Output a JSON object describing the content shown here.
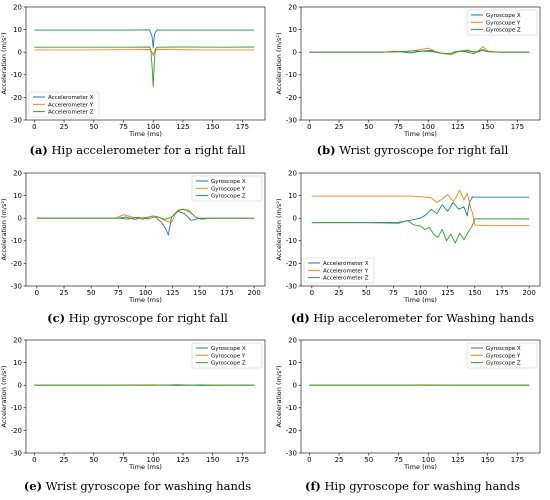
{
  "chart_data": [
    {
      "panel": "a",
      "type": "line",
      "caption_letter": "(a)",
      "caption": "Hip accelerometer for a right fall",
      "xlabel": "Time (ms)",
      "ylabel": "Acceleration (m/s²)",
      "xlim": [
        -7,
        194
      ],
      "ylim": [
        -30,
        20
      ],
      "xticks": [
        0,
        25,
        50,
        75,
        100,
        125,
        150,
        175
      ],
      "yticks": [
        20,
        10,
        0,
        -10,
        -20,
        -30
      ],
      "legend": "lower-left",
      "series": [
        {
          "name": "Accelerometer X",
          "color": "#1f77b4",
          "x": [
            0,
            20,
            40,
            60,
            80,
            97,
            99,
            100,
            101,
            103,
            120,
            140,
            160,
            185
          ],
          "y": [
            9.8,
            9.8,
            9.8,
            9.8,
            9.8,
            9.9,
            7.0,
            2.0,
            8.0,
            9.8,
            9.8,
            9.8,
            9.8,
            9.8
          ]
        },
        {
          "name": "Accelerometer Y",
          "color": "#ff7f0e",
          "x": [
            0,
            40,
            80,
            97,
            99,
            100,
            101,
            103,
            140,
            185
          ],
          "y": [
            1.0,
            1.0,
            1.1,
            1.2,
            0.0,
            -1.5,
            0.5,
            1.2,
            1.0,
            1.0
          ]
        },
        {
          "name": "Accelerometer Z",
          "color": "#2ca02c",
          "x": [
            0,
            40,
            80,
            97,
            98,
            99,
            100,
            101,
            102,
            103,
            120,
            160,
            185
          ],
          "y": [
            2.2,
            2.2,
            2.2,
            2.3,
            1.0,
            -6.0,
            -15.5,
            -3.0,
            1.5,
            2.2,
            2.3,
            2.2,
            2.3
          ]
        }
      ]
    },
    {
      "panel": "b",
      "type": "line",
      "caption_letter": "(b)",
      "caption": "Wrist gyroscope for right fall",
      "xlabel": "Time (ms)",
      "ylabel": "Acceleration (m/s²)",
      "xlim": [
        -7,
        194
      ],
      "ylim": [
        -30,
        20
      ],
      "xticks": [
        0,
        25,
        50,
        75,
        100,
        125,
        150,
        175
      ],
      "yticks": [
        20,
        10,
        0,
        -10,
        -20,
        -30
      ],
      "legend": "top-right",
      "series": [
        {
          "name": "Gyroscope X",
          "color": "#1f77b4",
          "x": [
            0,
            40,
            60,
            75,
            85,
            95,
            102,
            110,
            118,
            122,
            130,
            138,
            145,
            150,
            160,
            185
          ],
          "y": [
            0,
            0,
            0,
            0.3,
            -0.3,
            0.5,
            0.8,
            -0.4,
            -1.0,
            0.2,
            0.4,
            -0.6,
            0.8,
            0.3,
            0,
            0
          ]
        },
        {
          "name": "Gyroscope Y",
          "color": "#ff7f0e",
          "x": [
            0,
            40,
            62,
            72,
            82,
            92,
            100,
            106,
            112,
            120,
            126,
            134,
            140,
            146,
            150,
            160,
            185
          ],
          "y": [
            0,
            0,
            0,
            0.5,
            0.3,
            1.0,
            1.8,
            0.4,
            -0.5,
            -1.0,
            0.5,
            1.0,
            -0.4,
            2.5,
            0.5,
            0,
            0
          ]
        },
        {
          "name": "Gyroscope Z",
          "color": "#2ca02c",
          "x": [
            0,
            40,
            60,
            75,
            88,
            96,
            104,
            110,
            118,
            124,
            132,
            140,
            146,
            150,
            160,
            185
          ],
          "y": [
            0,
            0,
            0,
            0.2,
            0.6,
            0.4,
            0.2,
            -0.4,
            -0.6,
            0.2,
            0.6,
            0.2,
            1.2,
            0.2,
            0,
            0
          ]
        }
      ]
    },
    {
      "panel": "c",
      "type": "line",
      "caption_letter": "(c)",
      "caption": "Hip gyroscope for right fall",
      "xlabel": "Time (ms)",
      "ylabel": "Acceleration (m/s²)",
      "xlim": [
        -10,
        210
      ],
      "ylim": [
        -30,
        20
      ],
      "xticks": [
        0,
        25,
        50,
        75,
        100,
        125,
        150,
        175,
        200
      ],
      "yticks": [
        20,
        10,
        0,
        -10,
        -20,
        -30
      ],
      "legend": "top-right",
      "series": [
        {
          "name": "Gyroscope X",
          "color": "#1f77b4",
          "x": [
            0,
            50,
            75,
            82,
            90,
            100,
            108,
            115,
            119,
            121,
            124,
            130,
            136,
            142,
            150,
            160,
            200
          ],
          "y": [
            0,
            0,
            0,
            0.5,
            -0.5,
            0.3,
            1.0,
            -2.0,
            -5.0,
            -7.5,
            0.5,
            3.0,
            2.0,
            -1.0,
            0,
            0,
            0
          ]
        },
        {
          "name": "Gyroscope Y",
          "color": "#ff7f0e",
          "x": [
            0,
            50,
            72,
            80,
            88,
            98,
            106,
            112,
            118,
            124,
            128,
            134,
            140,
            146,
            152,
            160,
            200
          ],
          "y": [
            0,
            0,
            0,
            1.5,
            0.5,
            -0.5,
            1.0,
            0.5,
            -1.0,
            -2.0,
            2.5,
            4.0,
            3.5,
            0.5,
            -0.5,
            0,
            0
          ]
        },
        {
          "name": "Gyroscope Z",
          "color": "#2ca02c",
          "x": [
            0,
            50,
            75,
            84,
            92,
            102,
            110,
            118,
            124,
            130,
            135,
            140,
            146,
            150,
            160,
            200
          ],
          "y": [
            0,
            0,
            0,
            -0.4,
            0.4,
            -0.3,
            0.8,
            -0.5,
            0.5,
            3.5,
            4.0,
            3.0,
            0.5,
            -0.3,
            0,
            0
          ]
        }
      ]
    },
    {
      "panel": "d",
      "type": "line",
      "caption_letter": "(d)",
      "caption": "Hip accelerometer for Washing hands",
      "xlabel": "Time (ms)",
      "ylabel": "Acceleration (m/s²)",
      "xlim": [
        -10,
        210
      ],
      "ylim": [
        -30,
        20
      ],
      "xticks": [
        0,
        25,
        50,
        75,
        100,
        125,
        150,
        175,
        200
      ],
      "yticks": [
        20,
        10,
        0,
        -10,
        -20,
        -30
      ],
      "legend": "lower-left",
      "series": [
        {
          "name": "Accelerometer X",
          "color": "#1f77b4",
          "x": [
            0,
            50,
            80,
            90,
            100,
            105,
            110,
            115,
            120,
            125,
            130,
            135,
            140,
            143,
            145,
            148,
            150,
            160,
            200
          ],
          "y": [
            -2.0,
            -2.0,
            -1.8,
            -1.0,
            0.0,
            1.5,
            4.0,
            2.0,
            6.0,
            3.0,
            7.0,
            4.0,
            5.0,
            1.0,
            7.0,
            9.5,
            9.3,
            9.3,
            9.3
          ]
        },
        {
          "name": "Accelerometer Y",
          "color": "#ff7f0e",
          "x": [
            0,
            50,
            90,
            100,
            110,
            115,
            120,
            125,
            130,
            133,
            136,
            140,
            143,
            146,
            148,
            150,
            160,
            200
          ],
          "y": [
            9.8,
            9.8,
            9.8,
            9.5,
            9.0,
            7.0,
            8.5,
            10.5,
            7.5,
            9.5,
            12.5,
            8.0,
            11.0,
            5.0,
            2.0,
            -3.0,
            -3.3,
            -3.3
          ]
        },
        {
          "name": "Accelerometer Z",
          "color": "#2ca02c",
          "x": [
            0,
            50,
            80,
            88,
            94,
            100,
            104,
            108,
            112,
            116,
            120,
            124,
            128,
            132,
            136,
            140,
            144,
            147,
            150,
            160,
            200
          ],
          "y": [
            -2.0,
            -2.0,
            -2.2,
            -1.0,
            -3.0,
            -3.5,
            -5.0,
            -4.0,
            -7.0,
            -8.5,
            -5.0,
            -10.0,
            -7.0,
            -11.0,
            -6.5,
            -9.5,
            -6.0,
            -4.0,
            -0.3,
            -0.3,
            -0.3
          ]
        }
      ]
    },
    {
      "panel": "e",
      "type": "line",
      "caption_letter": "(e)",
      "caption": "Wrist gyroscope for washing hands",
      "xlabel": "Time (ms)",
      "ylabel": "Acceleration (m/s²)",
      "xlim": [
        -7,
        194
      ],
      "ylim": [
        -30,
        20
      ],
      "xticks": [
        0,
        25,
        50,
        75,
        100,
        125,
        150,
        175
      ],
      "yticks": [
        20,
        10,
        0,
        -10,
        -20,
        -30
      ],
      "legend": "top-right",
      "series": [
        {
          "name": "Gyroscope X",
          "color": "#1f77b4",
          "x": [
            0,
            60,
            100,
            120,
            140,
            160,
            185
          ],
          "y": [
            0,
            0,
            0.1,
            -0.1,
            0.1,
            0,
            0
          ]
        },
        {
          "name": "Gyroscope Y",
          "color": "#ff7f0e",
          "x": [
            0,
            60,
            100,
            120,
            140,
            160,
            185
          ],
          "y": [
            0,
            0,
            -0.1,
            0.2,
            -0.1,
            0,
            0
          ]
        },
        {
          "name": "Gyroscope Z",
          "color": "#2ca02c",
          "x": [
            0,
            60,
            100,
            125,
            140,
            160,
            185
          ],
          "y": [
            0,
            0,
            0.1,
            0.1,
            -0.1,
            0,
            0
          ]
        }
      ]
    },
    {
      "panel": "f",
      "type": "line",
      "caption_letter": "(f)",
      "caption": "Hip gyroscope for washing hands",
      "xlabel": "Time (ms)",
      "ylabel": "Acceleration (m/s²)",
      "xlim": [
        -7,
        194
      ],
      "ylim": [
        -30,
        20
      ],
      "xticks": [
        0,
        25,
        50,
        75,
        100,
        125,
        150,
        175
      ],
      "yticks": [
        20,
        10,
        0,
        -10,
        -20,
        -30
      ],
      "legend": "top-right",
      "series": [
        {
          "name": "Gyroscope X",
          "color": "#1f77b4",
          "x": [
            0,
            80,
            100,
            120,
            185
          ],
          "y": [
            0,
            0,
            0.1,
            0,
            0
          ]
        },
        {
          "name": "Gyroscope Y",
          "color": "#ff7f0e",
          "x": [
            0,
            80,
            100,
            120,
            185
          ],
          "y": [
            0,
            0,
            -0.1,
            0,
            0
          ]
        },
        {
          "name": "Gyroscope Z",
          "color": "#2ca02c",
          "x": [
            0,
            80,
            100,
            120,
            185
          ],
          "y": [
            0,
            0,
            0.1,
            0,
            0
          ]
        }
      ]
    }
  ]
}
